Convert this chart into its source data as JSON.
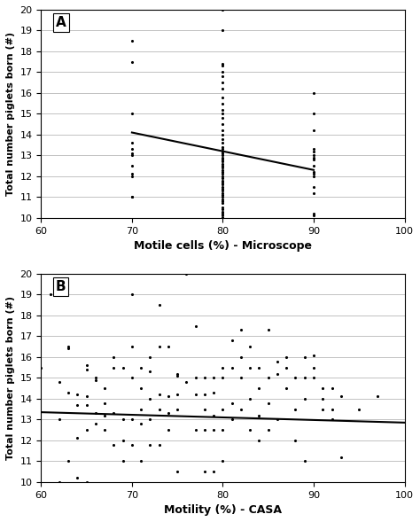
{
  "panel_A": {
    "label": "A",
    "xlabel": "Motile cells (%) - Microscope",
    "ylabel": "Total number piglets born (#)",
    "xlim": [
      60,
      100
    ],
    "ylim": [
      10,
      20
    ],
    "xticks": [
      60,
      70,
      80,
      90,
      100
    ],
    "yticks": [
      10,
      11,
      12,
      13,
      14,
      15,
      16,
      17,
      18,
      19,
      20
    ],
    "scatter_x": [
      70,
      70,
      70,
      70,
      70,
      70,
      70,
      70,
      70,
      70,
      70,
      70,
      80,
      80,
      80,
      80,
      80,
      80,
      80,
      80,
      80,
      80,
      80,
      80,
      80,
      80,
      80,
      80,
      80,
      80,
      80,
      80,
      80,
      80,
      80,
      80,
      80,
      80,
      80,
      80,
      80,
      80,
      80,
      80,
      80,
      80,
      80,
      80,
      80,
      80,
      80,
      80,
      80,
      80,
      80,
      80,
      80,
      80,
      80,
      80,
      80,
      80,
      80,
      80,
      80,
      80,
      80,
      80,
      90,
      90,
      90,
      90,
      90,
      90,
      90,
      90,
      90,
      90,
      90,
      90,
      90,
      90,
      90,
      90
    ],
    "scatter_y": [
      18.5,
      17.5,
      15.0,
      13.6,
      13.3,
      13.1,
      13.0,
      12.5,
      12.1,
      12.0,
      11.0,
      11.0,
      20.0,
      19.0,
      17.4,
      17.3,
      17.0,
      16.8,
      16.5,
      16.2,
      15.8,
      15.5,
      15.2,
      15.0,
      14.8,
      14.5,
      14.2,
      14.0,
      13.8,
      13.6,
      13.4,
      13.3,
      13.2,
      13.1,
      13.0,
      12.9,
      12.8,
      12.7,
      12.6,
      12.5,
      12.4,
      12.3,
      12.2,
      12.1,
      12.0,
      11.9,
      11.8,
      11.7,
      11.6,
      11.5,
      11.4,
      11.3,
      11.2,
      11.1,
      11.0,
      10.9,
      10.8,
      10.7,
      10.5,
      10.4,
      10.3,
      10.2,
      10.1,
      10.0,
      10.0,
      10.0,
      10.0,
      10.0,
      16.0,
      15.0,
      14.2,
      13.3,
      13.2,
      13.0,
      12.9,
      12.8,
      12.5,
      12.2,
      12.1,
      12.0,
      11.5,
      11.2,
      10.2,
      10.1
    ],
    "trend_x": [
      70,
      90
    ],
    "trend_y": [
      14.1,
      12.3
    ]
  },
  "panel_B": {
    "label": "B",
    "xlabel": "Motility (%) - CASA",
    "ylabel": "Total number piglets born (#)",
    "xlim": [
      60,
      100
    ],
    "ylim": [
      10,
      20
    ],
    "xticks": [
      60,
      70,
      80,
      90,
      100
    ],
    "yticks": [
      10,
      11,
      12,
      13,
      14,
      15,
      16,
      17,
      18,
      19,
      20
    ],
    "scatter_x": [
      60,
      61,
      62,
      62,
      62,
      63,
      63,
      63,
      63,
      64,
      64,
      64,
      64,
      65,
      65,
      65,
      65,
      65,
      65,
      66,
      66,
      66,
      66,
      67,
      67,
      67,
      67,
      68,
      68,
      68,
      68,
      69,
      69,
      69,
      69,
      70,
      70,
      70,
      70,
      70,
      71,
      71,
      71,
      71,
      71,
      72,
      72,
      72,
      72,
      72,
      73,
      73,
      73,
      73,
      73,
      74,
      74,
      74,
      74,
      75,
      75,
      75,
      75,
      75,
      76,
      76,
      77,
      77,
      77,
      77,
      78,
      78,
      78,
      78,
      78,
      79,
      79,
      79,
      79,
      79,
      80,
      80,
      80,
      80,
      80,
      81,
      81,
      81,
      81,
      82,
      82,
      82,
      82,
      83,
      83,
      83,
      83,
      84,
      84,
      84,
      84,
      85,
      85,
      85,
      85,
      86,
      86,
      86,
      87,
      87,
      87,
      88,
      88,
      88,
      89,
      89,
      89,
      89,
      90,
      90,
      90,
      91,
      91,
      91,
      92,
      92,
      92,
      93,
      93,
      95,
      97
    ],
    "scatter_y": [
      15.5,
      19.0,
      14.8,
      13.0,
      10.0,
      16.5,
      16.4,
      14.3,
      11.0,
      14.2,
      13.7,
      12.1,
      10.2,
      15.6,
      15.4,
      14.1,
      13.7,
      12.5,
      10.0,
      15.0,
      14.9,
      13.3,
      12.8,
      14.5,
      13.8,
      13.2,
      12.5,
      16.0,
      15.5,
      13.3,
      11.8,
      15.5,
      13.0,
      12.0,
      11.0,
      19.0,
      16.5,
      15.0,
      13.0,
      11.8,
      15.5,
      14.5,
      13.5,
      12.8,
      11.0,
      16.0,
      15.3,
      14.0,
      13.0,
      11.8,
      18.5,
      16.5,
      14.2,
      13.5,
      11.8,
      16.5,
      14.1,
      13.3,
      12.5,
      15.2,
      15.1,
      14.2,
      13.5,
      10.5,
      20.0,
      14.8,
      17.5,
      15.0,
      14.2,
      12.5,
      15.0,
      14.2,
      13.5,
      12.5,
      10.5,
      15.0,
      14.3,
      13.2,
      12.5,
      10.5,
      15.5,
      15.0,
      13.5,
      12.5,
      11.0,
      16.8,
      15.5,
      13.8,
      13.0,
      17.3,
      16.0,
      15.0,
      13.5,
      16.5,
      15.5,
      14.0,
      12.5,
      15.5,
      14.5,
      13.2,
      12.0,
      17.3,
      15.0,
      13.8,
      12.5,
      15.8,
      15.2,
      13.0,
      16.0,
      15.5,
      14.5,
      15.0,
      13.5,
      12.0,
      16.0,
      15.0,
      14.0,
      11.0,
      16.1,
      15.5,
      15.0,
      14.5,
      14.0,
      13.5,
      14.5,
      13.5,
      13.0,
      14.1,
      11.2,
      13.5,
      14.1
    ],
    "trend_x": [
      60,
      100
    ],
    "trend_y": [
      13.35,
      12.85
    ]
  },
  "dot_color": "#000000",
  "dot_size": 5,
  "line_color": "#000000",
  "background_color": "#ffffff",
  "grid_color": "#aaaaaa"
}
